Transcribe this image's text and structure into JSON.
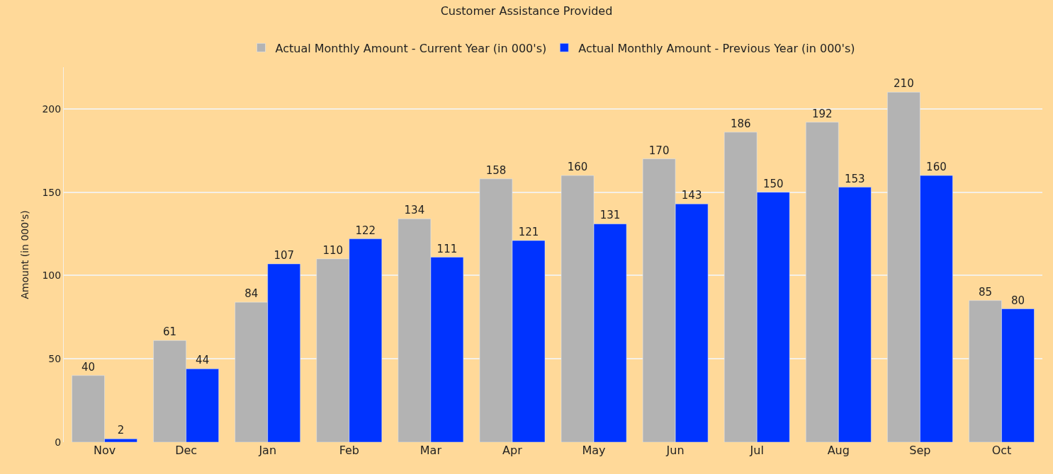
{
  "chart_data": {
    "type": "bar",
    "title": "Customer Assistance Provided",
    "ylabel": "Amount (in 000's)",
    "categories": [
      "Nov",
      "Dec",
      "Jan",
      "Feb",
      "Mar",
      "Apr",
      "May",
      "Jun",
      "Jul",
      "Aug",
      "Sep",
      "Oct"
    ],
    "series": [
      {
        "name": "Actual Monthly Amount - Current Year (in 000's)",
        "color": "#b3b3b3",
        "values": [
          40,
          61,
          84,
          110,
          134,
          158,
          160,
          170,
          186,
          192,
          210,
          85
        ]
      },
      {
        "name": "Actual Monthly Amount - Previous Year (in 000's)",
        "color": "#0033ff",
        "values": [
          2,
          44,
          107,
          122,
          111,
          121,
          131,
          143,
          150,
          153,
          160,
          80
        ]
      }
    ],
    "ylim": [
      0,
      225
    ],
    "yticks": [
      0,
      50,
      100,
      150,
      200
    ],
    "grid": "y",
    "legend": "top",
    "data_labels": true
  }
}
